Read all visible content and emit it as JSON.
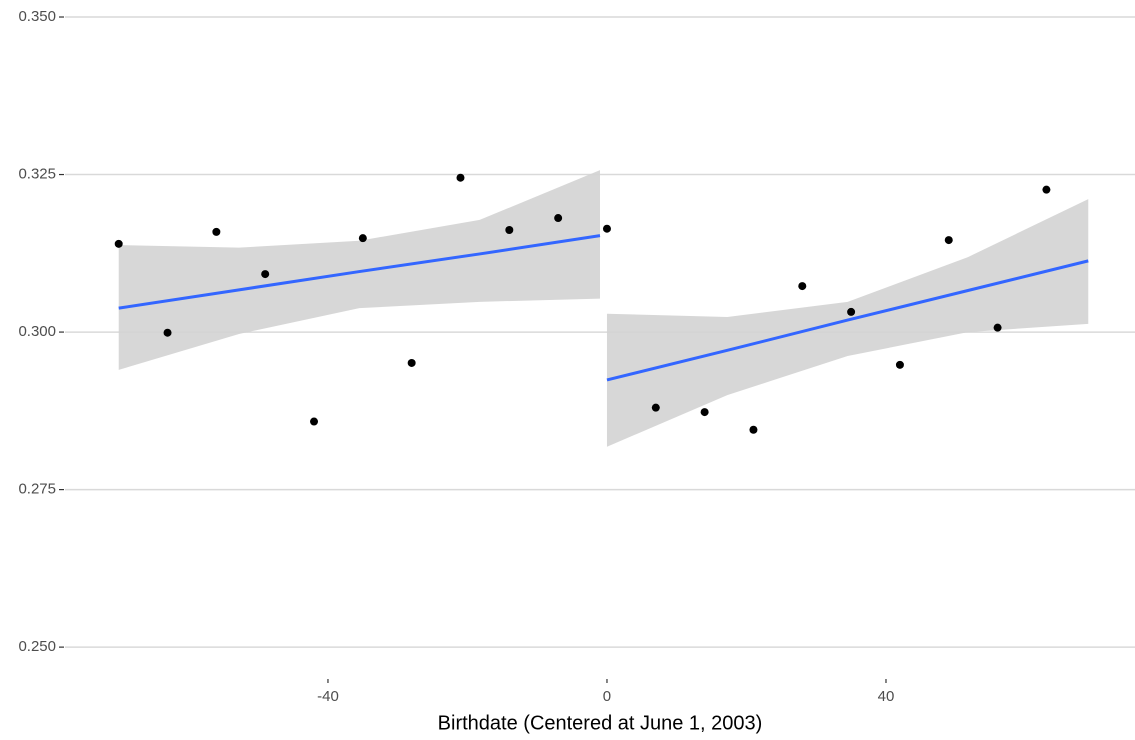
{
  "chart_data": {
    "type": "scatter",
    "x_label": "Birthdate (Centered at June 1, 2003)",
    "x": [
      -70,
      -63,
      -56,
      -49,
      -42,
      -35,
      -28,
      -21,
      -14,
      -7,
      0,
      7,
      14,
      21,
      28,
      35,
      42,
      49,
      56,
      63
    ],
    "values": [
      0.314,
      0.2999,
      0.3159,
      0.3092,
      0.2858,
      0.3149,
      0.2951,
      0.3245,
      0.3162,
      0.3181,
      0.3164,
      0.288,
      0.2873,
      0.2845,
      0.3073,
      0.3032,
      0.2948,
      0.3146,
      0.3007,
      0.3226
    ],
    "color": "#000000",
    "fits": [
      {
        "x": [
          -70,
          -52.75,
          -35.5,
          -18.25,
          -1
        ],
        "values": [
          0.3038,
          0.3067,
          0.3096,
          0.3124,
          0.3153
        ],
        "lower": [
          0.294,
          0.2997,
          0.3038,
          0.3048,
          0.3053
        ],
        "upper": [
          0.3138,
          0.3134,
          0.3145,
          0.3178,
          0.3257
        ]
      },
      {
        "x": [
          0,
          17.25,
          34.5,
          51.75,
          69
        ],
        "values": [
          0.2924,
          0.2971,
          0.3019,
          0.3066,
          0.3113
        ],
        "lower": [
          0.2818,
          0.29,
          0.2962,
          0.3,
          0.3013
        ],
        "upper": [
          0.3029,
          0.3024,
          0.3048,
          0.3119,
          0.3211
        ]
      }
    ],
    "line_color": "#3366ff",
    "band_color": "#d3d3d3",
    "xlim": [
      -77.7,
      75.7
    ],
    "xticks": [
      -40,
      0,
      40
    ],
    "ylim": [
      0.2451,
      0.3527
    ],
    "yticks": [
      {
        "value": 0.25,
        "label": "0.250"
      },
      {
        "value": 0.275,
        "label": "0.275"
      },
      {
        "value": 0.3,
        "label": "0.300"
      },
      {
        "value": 0.325,
        "label": "0.325"
      },
      {
        "value": 0.35,
        "label": "0.350"
      }
    ],
    "grid": "y"
  }
}
